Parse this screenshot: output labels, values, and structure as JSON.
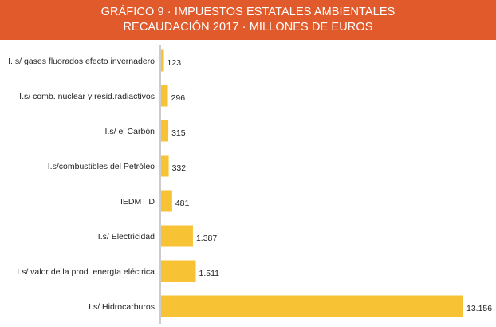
{
  "title": "GRÁFICO 9 · IMPUESTOS ESTATALES AMBIENTALES",
  "subtitle": "RECAUDACIÓN 2017 · MILLONES DE EUROS",
  "colors": {
    "header": "#e05a2b",
    "bar": "#f7c335",
    "axis": "#9a9a9a"
  },
  "chart_data": {
    "type": "bar",
    "orientation": "horizontal",
    "title": "GRÁFICO 9 · IMPUESTOS ESTATALES AMBIENTALES",
    "subtitle": "RECAUDACIÓN 2017 · MILLONES DE EUROS",
    "categories": [
      "I..s/ gases fluorados efecto invernadero",
      "I.s/ comb. nuclear  y resid.radiactivos",
      "I.s/ el Carbón",
      "I.s/combustibles del Petróleo",
      "IEDMT D",
      "I.s/ Electricidad",
      "I.s/ valor de la prod. energía eléctrica",
      "I.s/ Hidrocarburos"
    ],
    "values": [
      123,
      296,
      315,
      332,
      481,
      1387,
      1511,
      13156
    ],
    "value_labels": [
      "123",
      "296",
      "315",
      "332",
      "481",
      "1.387",
      "1.511",
      "13.156"
    ],
    "grid": false,
    "legend": "none"
  }
}
